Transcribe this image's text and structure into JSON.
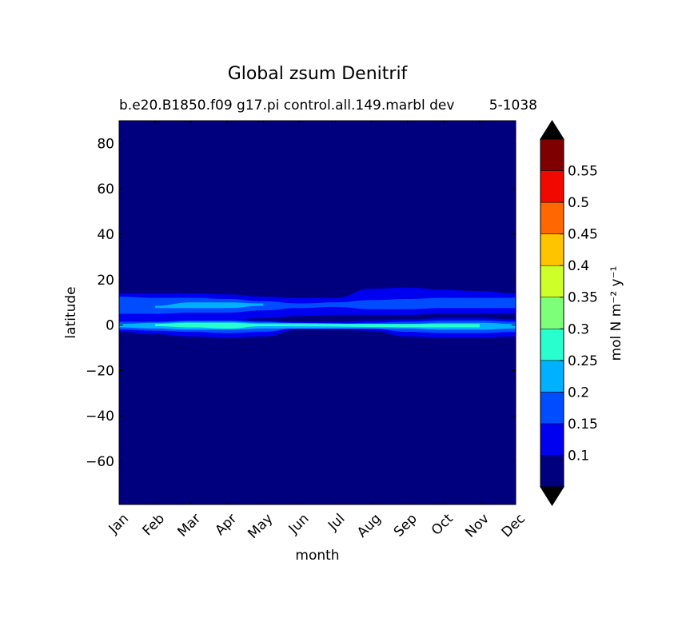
{
  "chart_data": {
    "type": "heatmap",
    "title": "Global zsum Denitrif",
    "subtitle": "b.e20.B1850.f09 g17.pi control.all.149.marbl dev",
    "subtitle_overlap": "5-1038",
    "xlabel": "month",
    "ylabel": "latitude",
    "x_categories": [
      "Jan",
      "Feb",
      "Mar",
      "Apr",
      "May",
      "Jun",
      "Jul",
      "Aug",
      "Sep",
      "Oct",
      "Nov",
      "Dec"
    ],
    "ylim": [
      -79,
      90
    ],
    "y_ticks": [
      -60,
      -40,
      -20,
      0,
      20,
      40,
      60,
      80
    ],
    "colorbar": {
      "label": "mol N m⁻² y⁻¹",
      "levels": [
        0.05,
        0.1,
        0.15,
        0.2,
        0.25,
        0.3,
        0.35,
        0.4,
        0.45,
        0.5,
        0.55,
        0.6
      ],
      "tick_labels": [
        "0.1",
        "0.15",
        "0.2",
        "0.25",
        "0.3",
        "0.35",
        "0.4",
        "0.45",
        "0.5",
        "0.55"
      ],
      "colors": [
        "#00007f",
        "#0000f1",
        "#004dff",
        "#00b1ff",
        "#29ffce",
        "#7dff7a",
        "#ceff29",
        "#ffc400",
        "#ff6800",
        "#f10800",
        "#7f0000"
      ],
      "extend": "both",
      "extend_colors": [
        "#000000",
        "#000000"
      ]
    },
    "background_color": "#00007f",
    "bands": [
      {
        "series": "north band",
        "level": 0.1,
        "months": [
          0,
          1,
          2,
          3,
          4,
          5,
          6,
          7,
          8,
          9,
          10,
          11
        ],
        "lat_low": [
          2.5,
          2.5,
          2.5,
          2.5,
          3.0,
          4.0,
          4.5,
          4.5,
          4.5,
          5.0,
          5.0,
          5.0
        ],
        "lat_high": [
          14.0,
          14.0,
          14.0,
          13.5,
          12.5,
          12.0,
          12.0,
          16.0,
          16.5,
          15.5,
          15.0,
          14.0
        ]
      },
      {
        "series": "north band",
        "level": 0.15,
        "months": [
          0,
          1,
          2,
          3,
          4,
          5,
          6,
          7,
          8,
          9,
          10,
          11
        ],
        "lat_low": [
          5.0,
          5.0,
          5.5,
          5.5,
          6.5,
          7.5,
          8.0,
          7.0,
          7.0,
          7.5,
          7.5,
          7.5
        ],
        "lat_high": [
          12.5,
          12.0,
          12.0,
          11.5,
          10.5,
          9.5,
          10.0,
          11.0,
          11.5,
          12.0,
          12.0,
          12.0
        ]
      },
      {
        "series": "north band",
        "level": 0.2,
        "months": [
          1,
          2,
          3,
          4
        ],
        "lat_low": [
          7.5,
          7.5,
          7.5,
          8.5
        ],
        "lat_high": [
          8.5,
          10.0,
          10.0,
          9.5
        ]
      },
      {
        "series": "equatorial band",
        "level": 0.1,
        "months": [
          0,
          1,
          2,
          3,
          4,
          5,
          6,
          7,
          8,
          9,
          10,
          11
        ],
        "lat_low": [
          -3.0,
          -4.0,
          -5.0,
          -5.5,
          -5.0,
          -2.0,
          -2.0,
          -2.5,
          -5.0,
          -5.5,
          -5.5,
          -5.0
        ],
        "lat_high": [
          2.5,
          2.5,
          2.5,
          2.5,
          2.0,
          1.5,
          1.5,
          2.0,
          2.5,
          3.0,
          3.0,
          2.5
        ]
      },
      {
        "series": "equatorial band",
        "level": 0.15,
        "months": [
          0,
          1,
          2,
          3,
          4,
          5,
          6,
          7,
          8,
          9,
          10,
          11
        ],
        "lat_low": [
          -2.0,
          -2.5,
          -3.0,
          -3.5,
          -3.0,
          -1.0,
          -1.0,
          -1.5,
          -3.0,
          -3.5,
          -3.5,
          -3.0
        ],
        "lat_high": [
          1.5,
          1.5,
          2.0,
          2.0,
          1.5,
          0.5,
          0.5,
          1.0,
          1.5,
          2.0,
          2.0,
          1.5
        ]
      },
      {
        "series": "equatorial band",
        "level": 0.2,
        "months": [
          0,
          1,
          2,
          3,
          4,
          8,
          9,
          10,
          11
        ],
        "lat_low": [
          -1.0,
          -1.5,
          -2.0,
          -2.0,
          -1.5,
          -1.5,
          -2.0,
          -2.0,
          -1.5
        ],
        "lat_high": [
          0.5,
          1.0,
          1.5,
          1.5,
          1.0,
          0.5,
          1.0,
          1.0,
          0.5
        ]
      },
      {
        "series": "equatorial band",
        "level": 0.25,
        "months": [
          1,
          2,
          3,
          4,
          9,
          10
        ],
        "lat_low": [
          -0.5,
          -1.0,
          -1.5,
          -0.5,
          -1.0,
          -1.0
        ],
        "lat_high": [
          0.5,
          1.0,
          1.0,
          0.5,
          0.5,
          0.5
        ]
      }
    ]
  }
}
